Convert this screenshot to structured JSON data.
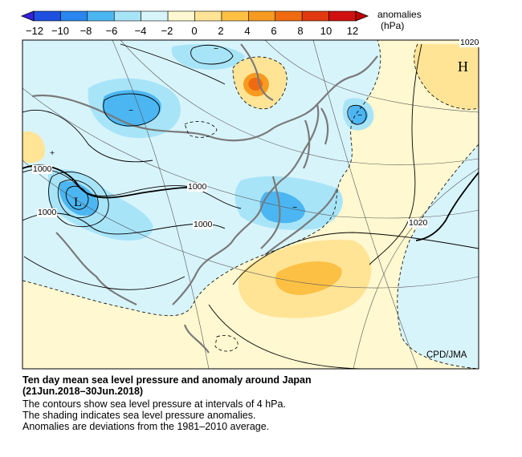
{
  "legend": {
    "title_line1": "anomalies",
    "title_line2": "(hPa)",
    "ticks": [
      "−12",
      "−10",
      "−8",
      "−6",
      "−4",
      "−2",
      "0",
      "2",
      "4",
      "6",
      "8",
      "10",
      "12"
    ],
    "colors": [
      "#1d4fe0",
      "#2a86ee",
      "#4cb6f2",
      "#a8e4f8",
      "#d8f4fb",
      "#fff8d0",
      "#ffe496",
      "#fcc044",
      "#f79a20",
      "#ef6a10",
      "#e23a10",
      "#d01010"
    ]
  },
  "map": {
    "high_label": "H",
    "low_label": "L",
    "isobar_labels": [
      "1000",
      "1000",
      "1000",
      "1000",
      "1020",
      "1020"
    ],
    "anomaly_labels": [
      "−",
      "−",
      "−",
      "−",
      "+"
    ],
    "credit": "CPD/JMA"
  },
  "caption": {
    "title_line1": "Ten day mean sea level pressure and anomaly around Japan",
    "title_line2": "(21Jun.2018–30Jun.2018)",
    "line3": "The contours show sea level pressure at intervals of 4 hPa.",
    "line4": "The shading indicates sea level pressure anomalies.",
    "line5": "Anomalies are deviations from the 1981–2010 average."
  }
}
